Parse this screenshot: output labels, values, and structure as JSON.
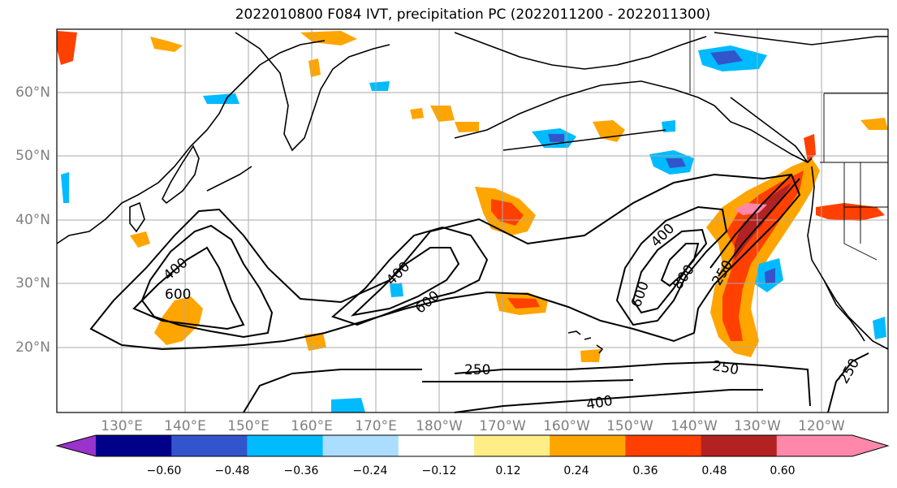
{
  "title": "2022010800 F084 IVT, precipitation PC (2022011200 - 2022011300)",
  "lat_labels": [
    "60°N",
    "50°N",
    "40°N",
    "30°N",
    "20°N"
  ],
  "lon_labels": [
    "130°E",
    "140°E",
    "150°E",
    "160°E",
    "170°E",
    "180°W",
    "170°W",
    "160°W",
    "150°W",
    "140°W",
    "130°W",
    "120°W"
  ],
  "contour_labels": [
    "400",
    "600",
    "400",
    "600",
    "400",
    "600",
    "800",
    "250",
    "250",
    "250",
    "250",
    "400"
  ],
  "colorbar": {
    "tick_labels": [
      "−0.60",
      "−0.48",
      "−0.36",
      "−0.24",
      "−0.12",
      "0.12",
      "0.24",
      "0.36",
      "0.48",
      "0.60"
    ],
    "colors": [
      "#9933cc",
      "#000088",
      "#3355cc",
      "#00bbff",
      "#aaddff",
      "#ffffff",
      "#ffee88",
      "#ffa500",
      "#ff4000",
      "#b22222",
      "#ff88aa",
      "#ff88aa"
    ]
  },
  "colors": {
    "land_line": "#000000",
    "grid": "#aaaaaa",
    "contour": "#000000"
  }
}
